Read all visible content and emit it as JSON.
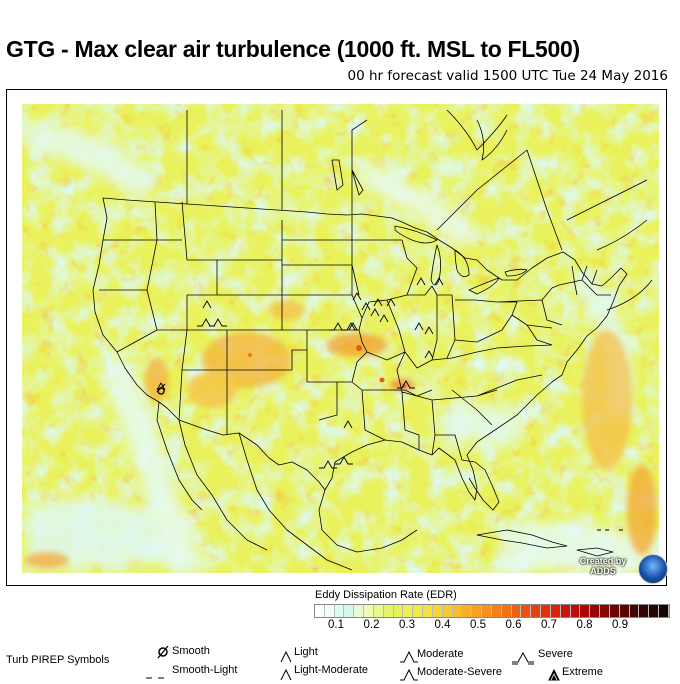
{
  "header": {
    "title": "GTG - Max clear air turbulence (1000 ft. MSL to FL500)",
    "subtitle": "00 hr forecast valid 1500 UTC Tue 24 May 2016"
  },
  "colors": {
    "background_yellow": "#e9f25c",
    "light_cyan": "#e3fbf6",
    "orange": "#f4a030",
    "red": "#e84010",
    "boundary": "#000000"
  },
  "legend": {
    "title": "Eddy Dissipation Rate (EDR)",
    "ticks": [
      "0.1",
      "0.2",
      "0.3",
      "0.4",
      "0.5",
      "0.6",
      "0.7",
      "0.8",
      "0.9"
    ],
    "colors": [
      "#ffffff",
      "#f0fdfb",
      "#dff9f3",
      "#d4f7ee",
      "#e8fbd4",
      "#f0fab0",
      "#eaf78a",
      "#e4f46c",
      "#e8f25c",
      "#eef050",
      "#f2ea46",
      "#f5e040",
      "#f8d438",
      "#f8c830",
      "#f8bc2c",
      "#f8ae28",
      "#f8a024",
      "#f69020",
      "#f4801c",
      "#f27018",
      "#ee6014",
      "#ea5010",
      "#e6400e",
      "#e0300c",
      "#d8200a",
      "#cc1408",
      "#be0c06",
      "#ac0604",
      "#980404",
      "#820404",
      "#6c0404",
      "#560404",
      "#420404",
      "#320404",
      "#240202",
      "#180101"
    ]
  },
  "logo": {
    "line1": "Created by",
    "line2": "ADDS",
    "icon": "noaa-logo"
  },
  "pirep_legend": {
    "heading": "Turb PIREP Symbols",
    "items": [
      {
        "label": "Smooth",
        "icon": "smooth-icon"
      },
      {
        "label": "Smooth-Light",
        "icon": "smooth-light-icon"
      },
      {
        "label": "Light",
        "icon": "light-icon"
      },
      {
        "label": "Light-Moderate",
        "icon": "light-moderate-icon"
      },
      {
        "label": "Moderate",
        "icon": "moderate-icon"
      },
      {
        "label": "Moderate-Severe",
        "icon": "moderate-severe-icon"
      },
      {
        "label": "Severe",
        "icon": "severe-icon"
      },
      {
        "label": "Extreme",
        "icon": "extreme-icon"
      }
    ]
  }
}
